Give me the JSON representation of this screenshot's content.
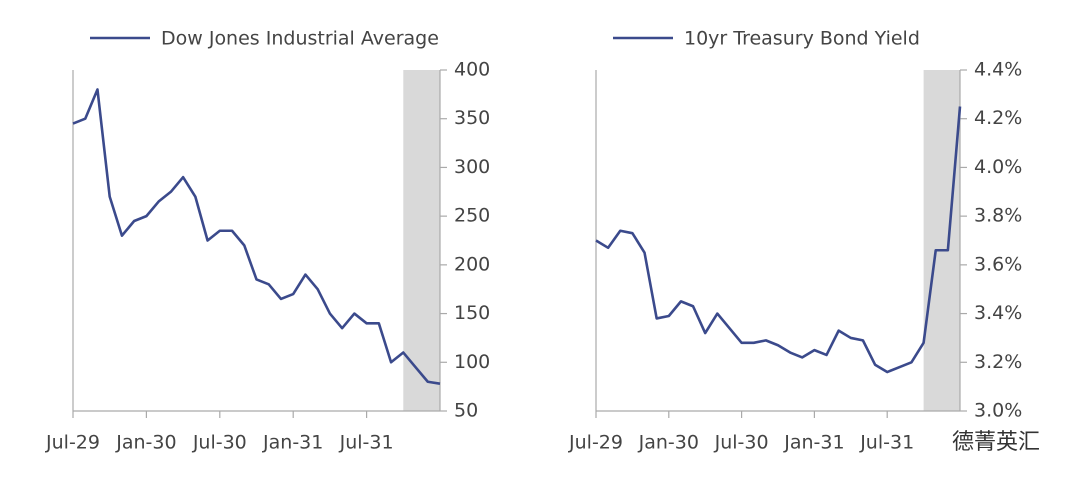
{
  "chart_data": [
    {
      "type": "line",
      "x": [
        "Jul-29",
        "Aug-29",
        "Sep-29",
        "Oct-29",
        "Nov-29",
        "Dec-29",
        "Jan-30",
        "Feb-30",
        "Mar-30",
        "Apr-30",
        "May-30",
        "Jun-30",
        "Jul-30",
        "Aug-30",
        "Sep-30",
        "Oct-30",
        "Nov-30",
        "Dec-30",
        "Jan-31",
        "Feb-31",
        "Mar-31",
        "Apr-31",
        "May-31",
        "Jun-31",
        "Jul-31",
        "Aug-31",
        "Sep-31",
        "Oct-31",
        "Nov-31",
        "Dec-31",
        "Jan-32"
      ],
      "series": [
        {
          "name": "Dow Jones Industrial Average",
          "color": "#3b4a8c",
          "values": [
            345,
            350,
            380,
            270,
            230,
            245,
            250,
            265,
            275,
            290,
            270,
            225,
            235,
            235,
            220,
            185,
            180,
            165,
            170,
            190,
            175,
            150,
            135,
            150,
            140,
            140,
            100,
            110,
            95,
            80,
            78
          ]
        }
      ],
      "xlim": [
        "Jul-29",
        "Jan-32"
      ],
      "xticks": [
        "Jul-29",
        "Jan-30",
        "Jul-30",
        "Jan-31",
        "Jul-31"
      ],
      "ylim": [
        50,
        400
      ],
      "yticks": [
        50,
        100,
        150,
        200,
        250,
        300,
        350,
        400
      ],
      "shade": [
        "Oct-31",
        "Jan-32"
      ],
      "shade_color": "#d9d9d9"
    },
    {
      "type": "line",
      "x": [
        "Jul-29",
        "Aug-29",
        "Sep-29",
        "Oct-29",
        "Nov-29",
        "Dec-29",
        "Jan-30",
        "Feb-30",
        "Mar-30",
        "Apr-30",
        "May-30",
        "Jun-30",
        "Jul-30",
        "Aug-30",
        "Sep-30",
        "Oct-30",
        "Nov-30",
        "Dec-30",
        "Jan-31",
        "Feb-31",
        "Mar-31",
        "Apr-31",
        "May-31",
        "Jun-31",
        "Jul-31",
        "Aug-31",
        "Sep-31",
        "Oct-31",
        "Nov-31",
        "Dec-31",
        "Jan-32"
      ],
      "series": [
        {
          "name": "10yr Treasury Bond Yield",
          "color": "#3b4a8c",
          "values": [
            3.7,
            3.67,
            3.74,
            3.73,
            3.65,
            3.38,
            3.39,
            3.45,
            3.43,
            3.32,
            3.4,
            3.34,
            3.28,
            3.28,
            3.29,
            3.27,
            3.24,
            3.22,
            3.25,
            3.23,
            3.33,
            3.3,
            3.29,
            3.19,
            3.16,
            3.18,
            3.2,
            3.28,
            3.66,
            3.66,
            4.25
          ]
        }
      ],
      "xlim": [
        "Jul-29",
        "Jan-32"
      ],
      "xticks": [
        "Jul-29",
        "Jan-30",
        "Jul-30",
        "Jan-31",
        "Jul-31"
      ],
      "ylim": [
        3.0,
        4.4
      ],
      "yticks": [
        {
          "value": 3.0,
          "label": "3.0%"
        },
        {
          "value": 3.2,
          "label": "3.2%"
        },
        {
          "value": 3.4,
          "label": "3.4%"
        },
        {
          "value": 3.6,
          "label": "3.6%"
        },
        {
          "value": 3.8,
          "label": "3.8%"
        },
        {
          "value": 4.0,
          "label": "4.0%"
        },
        {
          "value": 4.2,
          "label": "4.2%"
        },
        {
          "value": 4.4,
          "label": "4.4%"
        }
      ],
      "shade": [
        "Oct-31",
        "Jan-32"
      ],
      "shade_color": "#d9d9d9",
      "watermark": "德菁英汇"
    }
  ]
}
